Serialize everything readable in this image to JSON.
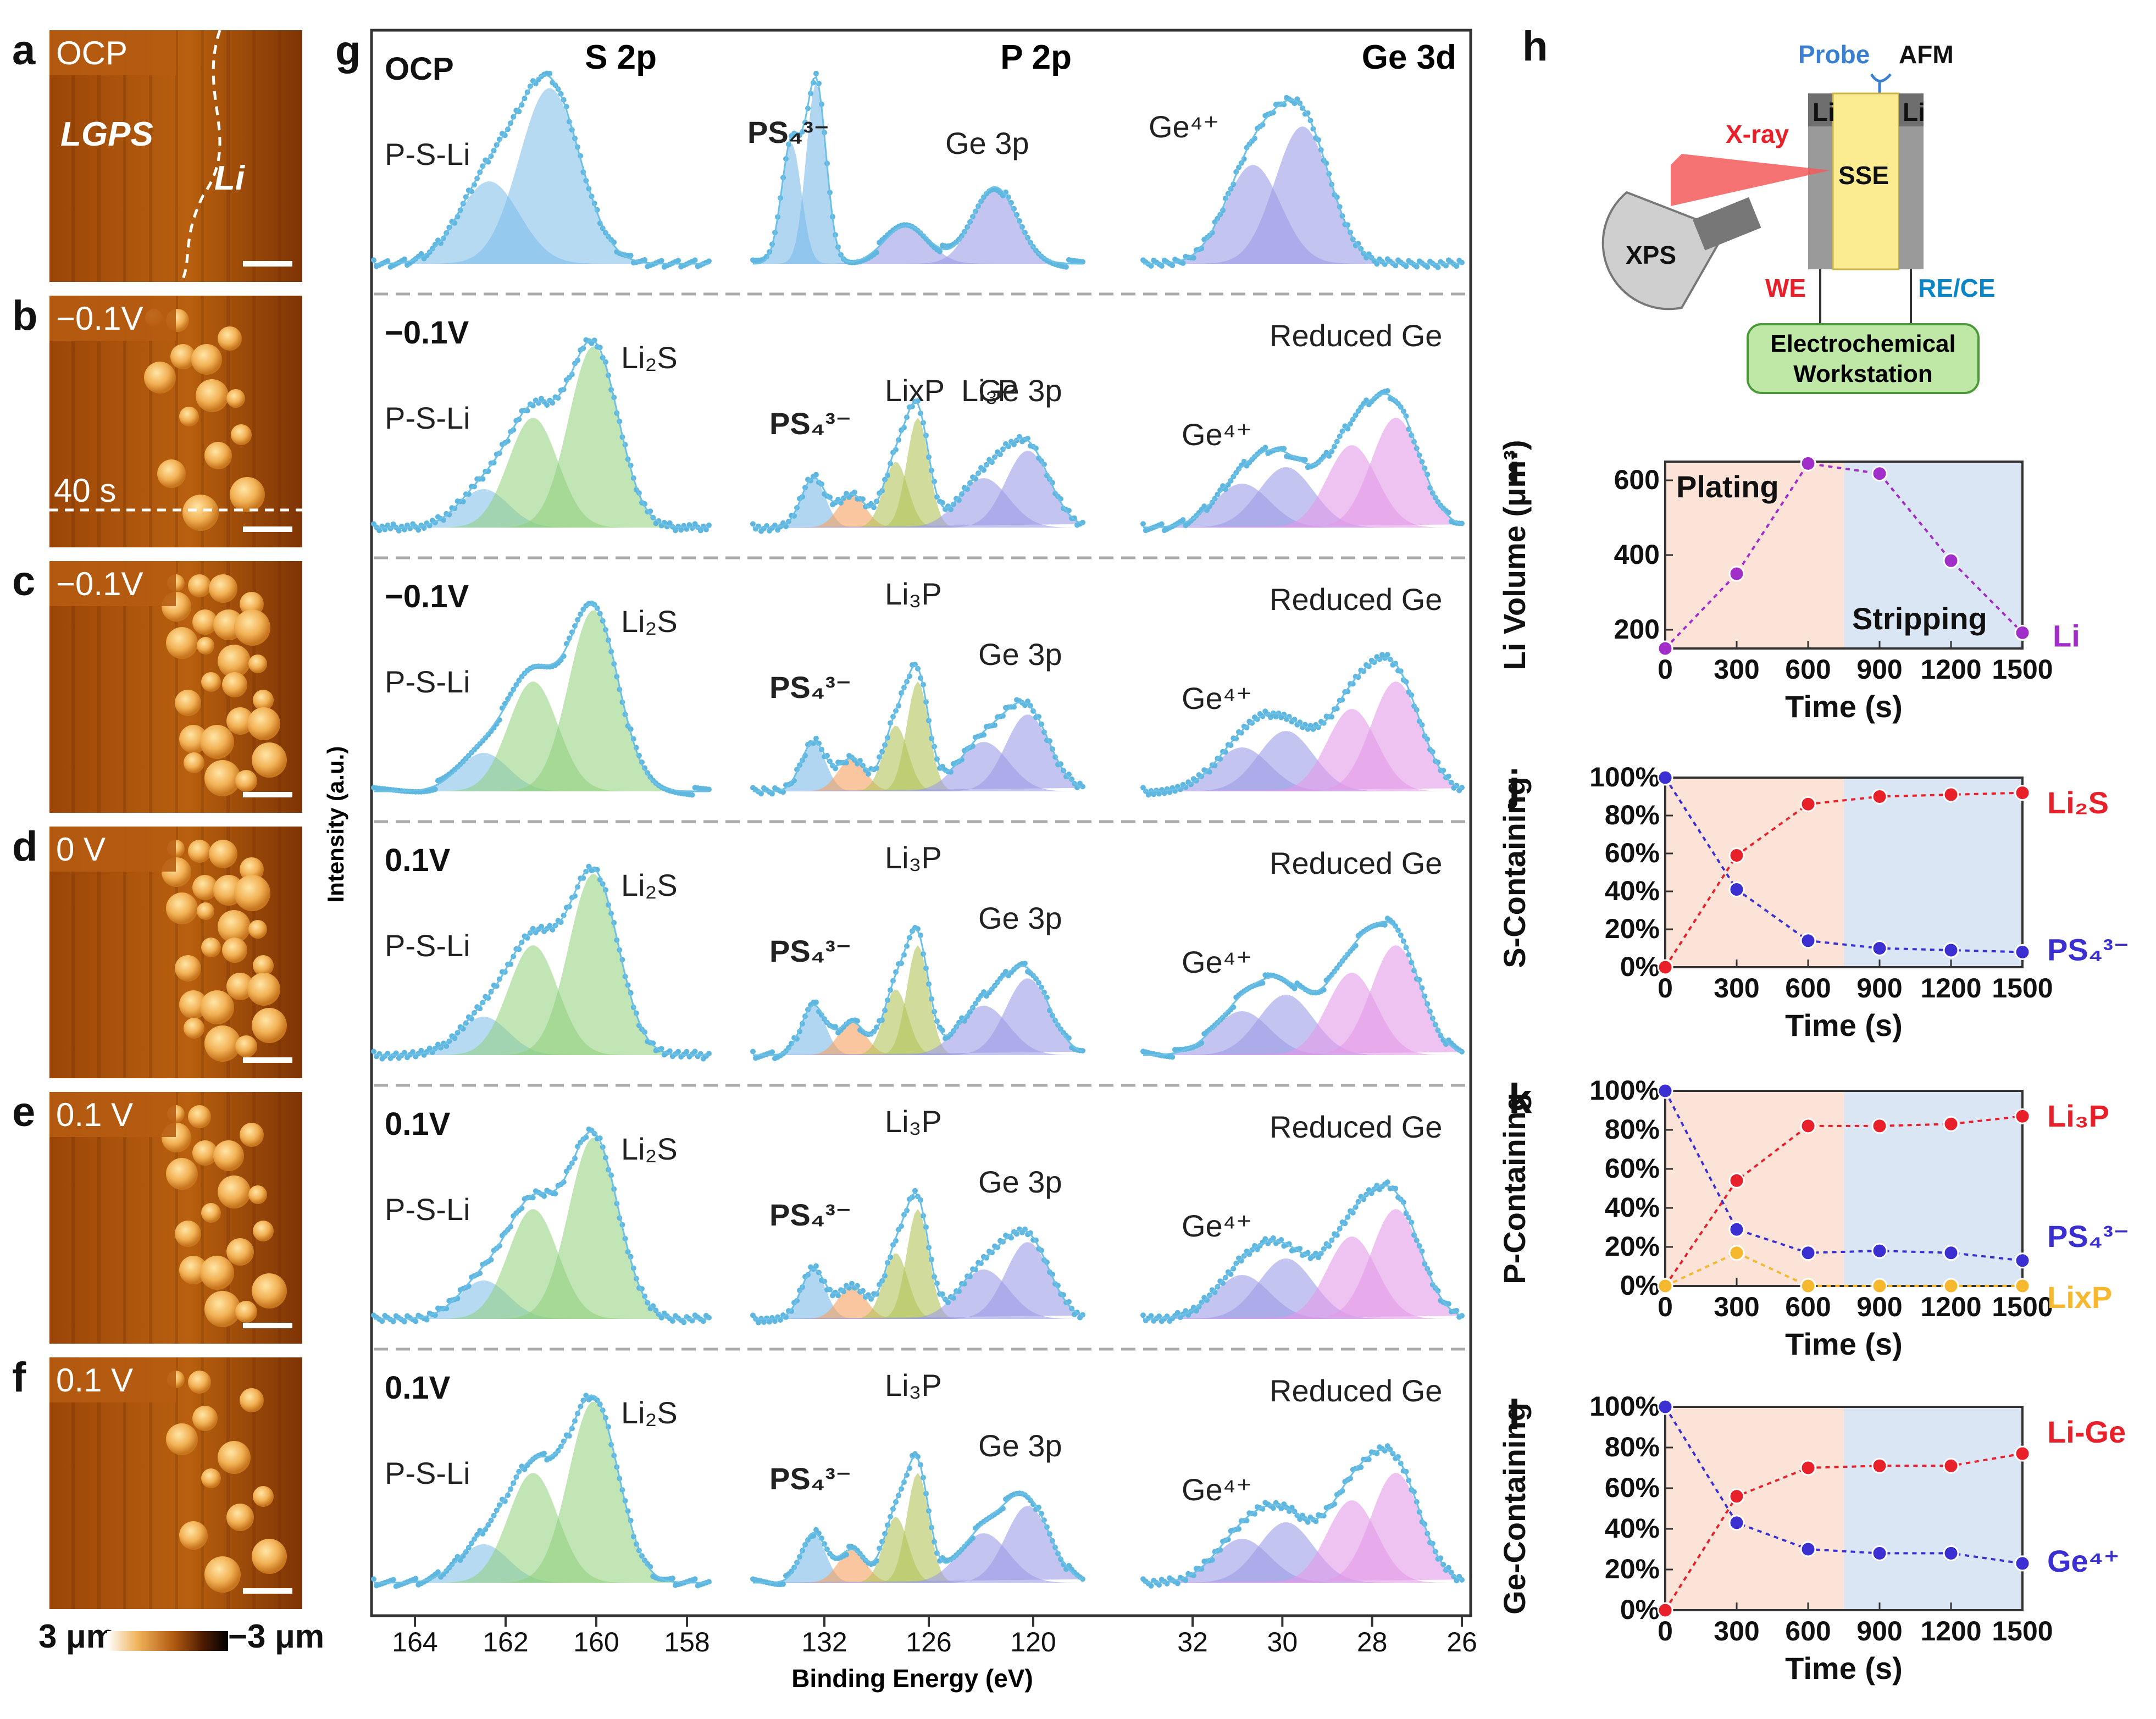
{
  "afm": {
    "panels": [
      {
        "letter": "a",
        "label": "OCP"
      },
      {
        "letter": "b",
        "label": "−0.1V"
      },
      {
        "letter": "c",
        "label": "−0.1V"
      },
      {
        "letter": "d",
        "label": "0 V"
      },
      {
        "letter": "e",
        "label": "0.1 V"
      },
      {
        "letter": "f",
        "label": "0.1 V"
      }
    ],
    "lgps_label": "LGPS",
    "li_label": "Li",
    "time_label": "40 s",
    "colorbar_min": "3 μm",
    "colorbar_max": "−3 μm"
  },
  "xps": {
    "letter": "g",
    "headers": [
      "S 2p",
      "P 2p",
      "Ge 3d"
    ],
    "rows": [
      {
        "state": "OCP",
        "s": [
          "P-S-Li",
          ""
        ],
        "p": [
          "PS₄³⁻",
          "",
          "Ge 3p"
        ],
        "ge": [
          "Ge⁴⁺",
          ""
        ]
      },
      {
        "state": "−0.1V",
        "s": [
          "P-S-Li",
          "Li₂S"
        ],
        "p": [
          "PS₄³⁻",
          "LixP  Li₃P",
          "Ge 3p"
        ],
        "ge": [
          "Ge⁴⁺",
          "Reduced Ge"
        ]
      },
      {
        "state": "−0.1V",
        "s": [
          "P-S-Li",
          "Li₂S"
        ],
        "p": [
          "PS₄³⁻",
          "Li₃P",
          "Ge 3p"
        ],
        "ge": [
          "Ge⁴⁺",
          "Reduced Ge"
        ]
      },
      {
        "state": "0.1V",
        "s": [
          "P-S-Li",
          "Li₂S"
        ],
        "p": [
          "PS₄³⁻",
          "Li₃P",
          "Ge 3p"
        ],
        "ge": [
          "Ge⁴⁺",
          "Reduced Ge"
        ]
      },
      {
        "state": "0.1V",
        "s": [
          "P-S-Li",
          "Li₂S"
        ],
        "p": [
          "PS₄³⁻",
          "Li₃P",
          "Ge 3p"
        ],
        "ge": [
          "Ge⁴⁺",
          "Reduced Ge"
        ]
      },
      {
        "state": "0.1V",
        "s": [
          "P-S-Li",
          "Li₂S"
        ],
        "p": [
          "PS₄³⁻",
          "Li₃P",
          "Ge 3p"
        ],
        "ge": [
          "Ge⁴⁺",
          "Reduced Ge"
        ]
      }
    ],
    "ylabel": "Intensity (a.u.)",
    "xlabel": "Binding Energy (eV)",
    "s_ticks": [
      "164",
      "162",
      "160",
      "158"
    ],
    "p_ticks": [
      "132",
      "126",
      "120"
    ],
    "ge_ticks": [
      "32",
      "30",
      "28",
      "26"
    ]
  },
  "setup": {
    "letter": "h",
    "probe": "Probe",
    "afm": "AFM",
    "li_left": "Li",
    "li_right": "Li",
    "xray": "X-ray",
    "sse": "SSE",
    "xps": "XPS",
    "we": "WE",
    "rece": "RE/CE",
    "workstation_line1": "Electrochemical",
    "workstation_line2": "Workstation"
  },
  "colors": {
    "plating_bg": "#fbe3d8",
    "stripping_bg": "#dbe6f5",
    "red": "#e8202a",
    "blue": "#3b2fd1",
    "yellow": "#f5b82e",
    "purple": "#a12ec9",
    "afm_dark": "#8a3c05",
    "afm_light": "#e8a04a"
  },
  "chart_data": [
    {
      "type": "line",
      "panel": "i",
      "title": "",
      "xlabel": "Time (s)",
      "ylabel": "Li Volume (μm³)",
      "x": [
        0,
        300,
        600,
        900,
        1200,
        1500
      ],
      "xlim": [
        0,
        1500
      ],
      "ylim": [
        150,
        650
      ],
      "x_ticks": [
        "0",
        "300",
        "600",
        "900",
        "1200",
        "1500"
      ],
      "y_ticks": [
        "200",
        "400",
        "600"
      ],
      "region_labels": [
        "Plating",
        "Stripping"
      ],
      "series": [
        {
          "name": "Li",
          "values": [
            150,
            350,
            645,
            618,
            385,
            192
          ]
        }
      ]
    },
    {
      "type": "line",
      "panel": "j",
      "title": "",
      "xlabel": "Time (s)",
      "ylabel": "S-Containing",
      "x": [
        0,
        300,
        600,
        900,
        1200,
        1500
      ],
      "xlim": [
        0,
        1500
      ],
      "ylim": [
        0,
        100
      ],
      "x_ticks": [
        "0",
        "300",
        "600",
        "900",
        "1200",
        "1500"
      ],
      "y_ticks": [
        "0%",
        "20%",
        "40%",
        "60%",
        "80%",
        "100%"
      ],
      "series": [
        {
          "name": "Li₂S",
          "values": [
            0,
            59,
            86,
            90,
            91,
            92
          ]
        },
        {
          "name": "PS₄³⁻",
          "values": [
            100,
            41,
            14,
            10,
            9,
            8
          ]
        }
      ]
    },
    {
      "type": "line",
      "panel": "k",
      "title": "",
      "xlabel": "Time (s)",
      "ylabel": "P-Containing",
      "x": [
        0,
        300,
        600,
        900,
        1200,
        1500
      ],
      "xlim": [
        0,
        1500
      ],
      "ylim": [
        0,
        100
      ],
      "x_ticks": [
        "0",
        "300",
        "600",
        "900",
        "1200",
        "1500"
      ],
      "y_ticks": [
        "0%",
        "20%",
        "40%",
        "60%",
        "80%",
        "100%"
      ],
      "series": [
        {
          "name": "Li₃P",
          "values": [
            0,
            54,
            82,
            82,
            83,
            87
          ]
        },
        {
          "name": "PS₄³⁻",
          "values": [
            100,
            29,
            17,
            18,
            17,
            13
          ]
        },
        {
          "name": "LixP",
          "values": [
            0,
            17,
            0,
            0,
            0,
            0
          ]
        }
      ]
    },
    {
      "type": "line",
      "panel": "l",
      "title": "",
      "xlabel": "Time (s)",
      "ylabel": "Ge-Containing",
      "x": [
        0,
        300,
        600,
        900,
        1200,
        1500
      ],
      "xlim": [
        0,
        1500
      ],
      "ylim": [
        0,
        100
      ],
      "x_ticks": [
        "0",
        "300",
        "600",
        "900",
        "1200",
        "1500"
      ],
      "y_ticks": [
        "0%",
        "20%",
        "40%",
        "60%",
        "80%",
        "100%"
      ],
      "series": [
        {
          "name": "Li-Ge",
          "values": [
            0,
            56,
            70,
            71,
            71,
            77
          ]
        },
        {
          "name": "Ge⁴⁺",
          "values": [
            100,
            43,
            30,
            28,
            28,
            23
          ]
        }
      ]
    }
  ]
}
